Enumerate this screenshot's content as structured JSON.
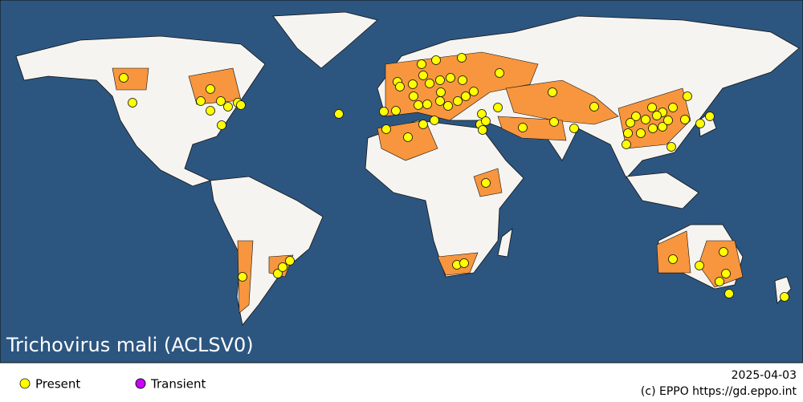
{
  "map": {
    "title": "Trichovirus mali (ACLSV0)"
  },
  "legend": {
    "items": [
      "Present",
      "Transient"
    ]
  },
  "footer": {
    "date": "2025-04-03",
    "credit": "(c) EPPO https://gd.eppo.int"
  }
}
